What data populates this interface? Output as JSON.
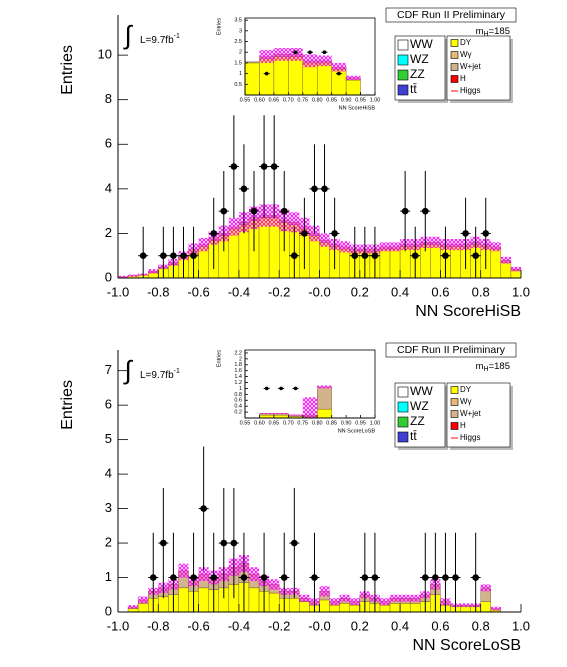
{
  "chart_data": [
    {
      "type": "histogram",
      "header": "CDF Run II Preliminary",
      "mass": {
        "text": "m",
        "sub": "H",
        "rest": "=185"
      },
      "lumi": {
        "symbol": "∫",
        "text": "L=9.7fb",
        "sup": "-1"
      },
      "xlabel": "NN ScoreHiSB",
      "ylabel": "Entries",
      "bins": [
        -1,
        -0.95,
        -0.9,
        -0.85,
        -0.8,
        -0.75,
        -0.7,
        -0.65,
        -0.6,
        -0.55,
        -0.5,
        -0.45,
        -0.4,
        -0.35,
        -0.3,
        -0.25,
        -0.2,
        -0.15,
        -0.1,
        -0.05,
        0,
        0.05,
        0.1,
        0.15,
        0.2,
        0.25,
        0.3,
        0.35,
        0.4,
        0.45,
        0.5,
        0.55,
        0.6,
        0.65,
        0.7,
        0.75,
        0.8,
        0.85,
        0.9,
        0.95,
        1
      ],
      "series": [
        {
          "name": "WW",
          "color": "#ffffff"
        },
        {
          "name": "WZ",
          "color": "#00ffff"
        },
        {
          "name": "ZZ",
          "color": "#33cc33"
        },
        {
          "name": "tt̄",
          "color": "#4040d0"
        },
        {
          "name": "DY",
          "color": "#ffff00",
          "values": [
            0.05,
            0.1,
            0.15,
            0.25,
            0.45,
            0.6,
            0.9,
            1.2,
            1.4,
            1.7,
            1.9,
            2.2,
            2.4,
            2.6,
            2.7,
            2.7,
            2.5,
            2.4,
            2.2,
            1.9,
            1.6,
            1.4,
            1.3,
            1.2,
            1.2,
            1.2,
            1.3,
            1.3,
            1.4,
            1.4,
            1.5,
            1.5,
            1.4,
            1.4,
            1.4,
            1.5,
            1.4,
            1.3,
            0.7,
            0.35
          ]
        },
        {
          "name": "Wγ",
          "color": "#e8b878"
        },
        {
          "name": "W+jet",
          "color": "#d2b48c",
          "values": [
            0,
            0,
            0,
            0.05,
            0.05,
            0.1,
            0.1,
            0.1,
            0.1,
            0.1,
            0.1,
            0.1,
            0.1,
            0.1,
            0.1,
            0.1,
            0.1,
            0.1,
            0.1,
            0.1,
            0.1,
            0.1,
            0.1,
            0.1,
            0.1,
            0.1,
            0.1,
            0.1,
            0.1,
            0.1,
            0.1,
            0.1,
            0.1,
            0.1,
            0.1,
            0.1,
            0.1,
            0.1,
            0.1,
            0.05
          ]
        },
        {
          "name": "H",
          "color": "#ff0000"
        },
        {
          "name": "Higgs",
          "color": "#ff0000",
          "style": "line"
        }
      ],
      "uncertainty": {
        "color": "#ff00ff",
        "values": [
          0.05,
          0.05,
          0.05,
          0.1,
          0.1,
          0.15,
          0.2,
          0.25,
          0.3,
          0.3,
          0.35,
          0.4,
          0.45,
          0.5,
          0.5,
          0.5,
          0.5,
          0.45,
          0.4,
          0.35,
          0.3,
          0.25,
          0.25,
          0.2,
          0.2,
          0.2,
          0.2,
          0.2,
          0.25,
          0.25,
          0.25,
          0.25,
          0.25,
          0.25,
          0.25,
          0.25,
          0.25,
          0.2,
          0.15,
          0.1
        ]
      },
      "points": {
        "x": [
          -0.875,
          -0.775,
          -0.725,
          -0.675,
          -0.625,
          -0.525,
          -0.475,
          -0.425,
          -0.375,
          -0.325,
          -0.275,
          -0.225,
          -0.175,
          -0.125,
          -0.075,
          -0.025,
          0.025,
          0.075,
          0.175,
          0.225,
          0.275,
          0.425,
          0.475,
          0.525,
          0.625,
          0.725,
          0.775,
          0.825
        ],
        "values": [
          1,
          1,
          1,
          1,
          1,
          2,
          3,
          5,
          4,
          3,
          5,
          5,
          3,
          1,
          2,
          4,
          4,
          2,
          1,
          1,
          1,
          3,
          1,
          3,
          1,
          2,
          1,
          2
        ],
        "errors": [
          1.3,
          1.3,
          1.3,
          1.3,
          1.3,
          1.6,
          1.8,
          2.3,
          2.0,
          1.8,
          2.3,
          2.3,
          1.8,
          1.3,
          1.6,
          2.0,
          2.0,
          1.6,
          1.3,
          1.3,
          1.3,
          1.8,
          1.3,
          1.8,
          1.3,
          1.6,
          1.3,
          1.6
        ]
      },
      "xlim": [
        -1,
        1
      ],
      "ylim": [
        0,
        11.8
      ],
      "xticks": [
        {
          "value": -1,
          "label": "-1.0"
        },
        -0.8,
        -0.6,
        -0.4,
        -0.2,
        {
          "value": 0,
          "label": "-0.0"
        },
        0.2,
        0.4,
        0.6,
        0.8,
        {
          "value": 1,
          "label": "1.0"
        }
      ],
      "yticks": [
        0,
        2,
        4,
        6,
        8,
        10
      ]
    },
    {
      "type": "histogram",
      "xlabel": "NN ScoreHiSB",
      "ylabel": "Entries",
      "bins": [
        0.55,
        0.6,
        0.65,
        0.7,
        0.75,
        0.8,
        0.85,
        0.9,
        0.95,
        1
      ],
      "stack": [
        {
          "color": "#ffff00",
          "values": [
            1.5,
            1.7,
            1.8,
            1.8,
            1.5,
            1.5,
            1.2,
            0.7,
            0
          ]
        },
        {
          "color": "#d2b48c",
          "values": [
            0.05,
            0.1,
            0.1,
            0.1,
            0.1,
            0.1,
            0.1,
            0.1,
            0
          ]
        }
      ],
      "uncertainty": {
        "color": "#ff00ff",
        "values": [
          0,
          0.3,
          0.3,
          0.3,
          0.3,
          0.25,
          0.2,
          0.1,
          0
        ]
      },
      "points": {
        "x": [
          0.625,
          0.725,
          0.775,
          0.825,
          0.875
        ],
        "values": [
          1,
          2,
          2,
          2,
          1
        ]
      },
      "xlim": [
        0.55,
        1
      ],
      "ylim": [
        0,
        3.6
      ],
      "xticks": [
        0.55,
        {
          "value": 0.6,
          "label": "0.60"
        },
        0.65,
        {
          "value": 0.7,
          "label": "0.70"
        },
        0.75,
        {
          "value": 0.8,
          "label": "0.80"
        },
        0.85,
        {
          "value": 0.9,
          "label": "0.90"
        },
        0.95,
        {
          "value": 1,
          "label": "1.00"
        }
      ],
      "yticks": [
        0.5,
        1,
        1.5,
        2,
        2.5,
        3,
        3.5
      ]
    },
    {
      "type": "histogram",
      "header": "CDF Run II Preliminary",
      "mass": {
        "text": "m",
        "sub": "H",
        "rest": "=185"
      },
      "lumi": {
        "symbol": "∫",
        "text": "L=9.7fb",
        "sup": "-1"
      },
      "xlabel": "NN ScoreLoSB",
      "ylabel": "Entries",
      "bins": [
        -1,
        -0.95,
        -0.9,
        -0.85,
        -0.8,
        -0.75,
        -0.7,
        -0.65,
        -0.6,
        -0.55,
        -0.5,
        -0.45,
        -0.4,
        -0.35,
        -0.3,
        -0.25,
        -0.2,
        -0.15,
        -0.1,
        -0.05,
        0,
        0.05,
        0.1,
        0.15,
        0.2,
        0.25,
        0.3,
        0.35,
        0.4,
        0.45,
        0.5,
        0.55,
        0.6,
        0.65,
        0.7,
        0.75,
        0.8,
        0.85,
        0.9,
        0.95,
        1
      ],
      "series": [
        {
          "name": "WW",
          "color": "#ffffff"
        },
        {
          "name": "WZ",
          "color": "#00ffff"
        },
        {
          "name": "ZZ",
          "color": "#33cc33"
        },
        {
          "name": "tt̄",
          "color": "#4040d0"
        },
        {
          "name": "DY",
          "color": "#ffff00",
          "values": [
            0,
            0.1,
            0.25,
            0.4,
            0.45,
            0.5,
            0.7,
            0.6,
            0.7,
            0.65,
            0.7,
            0.8,
            0.85,
            0.7,
            0.6,
            0.55,
            0.4,
            0.4,
            0.3,
            0.2,
            0.35,
            0.2,
            0.25,
            0.2,
            0.3,
            0.25,
            0.2,
            0.25,
            0.25,
            0.25,
            0.3,
            0.5,
            0.2,
            0.15,
            0.15,
            0.15,
            0.3,
            0.05,
            0,
            0
          ]
        },
        {
          "name": "Wγ",
          "color": "#e8b878"
        },
        {
          "name": "W+jet",
          "color": "#d2b48c",
          "values": [
            0,
            0.05,
            0.1,
            0.2,
            0.25,
            0.3,
            0.5,
            0.3,
            0.4,
            0.35,
            0.4,
            0.5,
            0.55,
            0.4,
            0.3,
            0.25,
            0.2,
            0.2,
            0.1,
            0.1,
            0.25,
            0.1,
            0.15,
            0.1,
            0.2,
            0.15,
            0.1,
            0.15,
            0.15,
            0.15,
            0.2,
            0.3,
            0.1,
            0.05,
            0.05,
            0.05,
            0.4,
            0.05,
            0,
            0
          ]
        },
        {
          "name": "H",
          "color": "#ff0000"
        },
        {
          "name": "Higgs",
          "color": "#ff0000",
          "style": "line"
        }
      ],
      "uncertainty": {
        "color": "#ff00ff",
        "values": [
          0,
          0.05,
          0.1,
          0.1,
          0.15,
          0.15,
          0.2,
          0.15,
          0.2,
          0.2,
          0.2,
          0.25,
          0.25,
          0.2,
          0.15,
          0.15,
          0.1,
          0.1,
          0.1,
          0.1,
          0.15,
          0.1,
          0.1,
          0.1,
          0.1,
          0.1,
          0.1,
          0.1,
          0.1,
          0.1,
          0.1,
          0.15,
          0.1,
          0.05,
          0.05,
          0.05,
          0.1,
          0.05,
          0,
          0
        ]
      },
      "points": {
        "x": [
          -0.825,
          -0.775,
          -0.725,
          -0.625,
          -0.575,
          -0.525,
          -0.475,
          -0.425,
          -0.375,
          -0.275,
          -0.175,
          -0.125,
          -0.025,
          0.225,
          0.275,
          0.525,
          0.575,
          0.625,
          0.675,
          0.775
        ],
        "values": [
          1,
          2,
          1,
          1,
          3,
          1,
          2,
          2,
          1,
          1,
          1,
          2,
          1,
          1,
          1,
          1,
          1,
          1,
          1,
          1
        ],
        "errors": [
          1.3,
          1.6,
          1.3,
          1.3,
          1.8,
          1.3,
          1.6,
          1.6,
          1.3,
          1.3,
          1.3,
          1.6,
          1.3,
          1.3,
          1.3,
          1.3,
          1.3,
          1.3,
          1.3,
          1.3
        ]
      },
      "xlim": [
        -1,
        1
      ],
      "ylim": [
        0,
        7.6
      ],
      "xticks": [
        {
          "value": -1,
          "label": "-1.0"
        },
        -0.8,
        -0.6,
        -0.4,
        -0.2,
        {
          "value": 0,
          "label": "-0.0"
        },
        0.2,
        0.4,
        0.6,
        0.8,
        {
          "value": 1,
          "label": "1.0"
        }
      ],
      "yticks": [
        0,
        1,
        2,
        3,
        4,
        5,
        6,
        7
      ]
    },
    {
      "type": "histogram",
      "xlabel": "NN ScoreLoSB",
      "ylabel": "Entries",
      "bins": [
        0.55,
        0.6,
        0.65,
        0.7,
        0.75,
        0.8,
        0.85,
        0.9,
        0.95,
        1
      ],
      "stack": [
        {
          "color": "#ffff00",
          "values": [
            0,
            0.1,
            0.1,
            0.05,
            0.05,
            0.3,
            0,
            0,
            0
          ]
        },
        {
          "color": "#d2b48c",
          "values": [
            0,
            0.05,
            0.05,
            0.05,
            0.05,
            0.75,
            0,
            0,
            0
          ]
        }
      ],
      "uncertainty": {
        "color": "#ff00ff",
        "values": [
          0,
          0.02,
          0.02,
          0.02,
          0.6,
          0.05,
          0,
          0,
          0
        ]
      },
      "points": {
        "x": [
          0.625,
          0.675,
          0.725
        ],
        "values": [
          1,
          1,
          1
        ]
      },
      "xlim": [
        0.55,
        1
      ],
      "ylim": [
        0,
        2.3
      ],
      "xticks": [
        0.55,
        {
          "value": 0.6,
          "label": "0.60"
        },
        0.65,
        {
          "value": 0.7,
          "label": "0.70"
        },
        0.75,
        {
          "value": 0.8,
          "label": "0.80"
        },
        0.85,
        {
          "value": 0.9,
          "label": "0.90"
        },
        0.95,
        {
          "value": 1,
          "label": "1.00"
        }
      ],
      "yticks": [
        0.2,
        0.4,
        0.6,
        0.8,
        1,
        1.2,
        1.4,
        1.6,
        1.8,
        2,
        2.2
      ]
    }
  ]
}
